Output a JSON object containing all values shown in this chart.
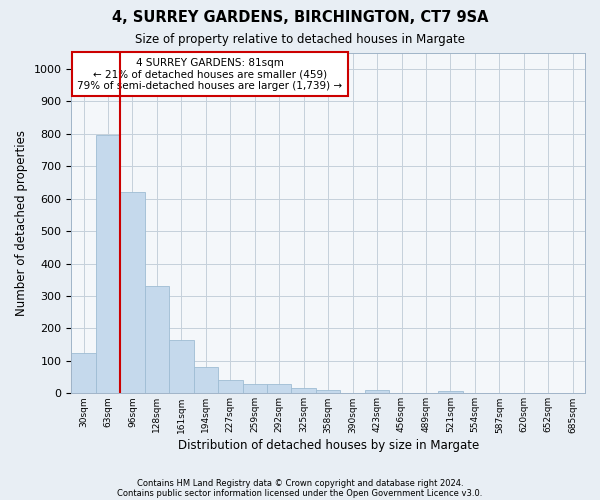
{
  "title1": "4, SURREY GARDENS, BIRCHINGTON, CT7 9SA",
  "title2": "Size of property relative to detached houses in Margate",
  "xlabel": "Distribution of detached houses by size in Margate",
  "ylabel": "Number of detached properties",
  "footnote1": "Contains HM Land Registry data © Crown copyright and database right 2024.",
  "footnote2": "Contains public sector information licensed under the Open Government Licence v3.0.",
  "annotation_line1": "4 SURREY GARDENS: 81sqm",
  "annotation_line2": "← 21% of detached houses are smaller (459)",
  "annotation_line3": "79% of semi-detached houses are larger (1,739) →",
  "bar_color": "#c5d9ec",
  "bar_edge_color": "#9fbdd4",
  "vline_color": "#cc0000",
  "bin_labels": [
    "30sqm",
    "63sqm",
    "96sqm",
    "128sqm",
    "161sqm",
    "194sqm",
    "227sqm",
    "259sqm",
    "292sqm",
    "325sqm",
    "358sqm",
    "390sqm",
    "423sqm",
    "456sqm",
    "489sqm",
    "521sqm",
    "554sqm",
    "587sqm",
    "620sqm",
    "652sqm",
    "685sqm"
  ],
  "bar_heights": [
    125,
    795,
    620,
    330,
    163,
    80,
    42,
    30,
    28,
    18,
    10,
    0,
    10,
    0,
    0,
    8,
    0,
    0,
    0,
    0,
    0
  ],
  "ylim": [
    0,
    1050
  ],
  "yticks": [
    0,
    100,
    200,
    300,
    400,
    500,
    600,
    700,
    800,
    900,
    1000
  ],
  "background_color": "#e8eef4",
  "plot_bg_color": "#f4f7fa",
  "grid_color": "#c5d0db",
  "vline_bar_index": 1.85
}
